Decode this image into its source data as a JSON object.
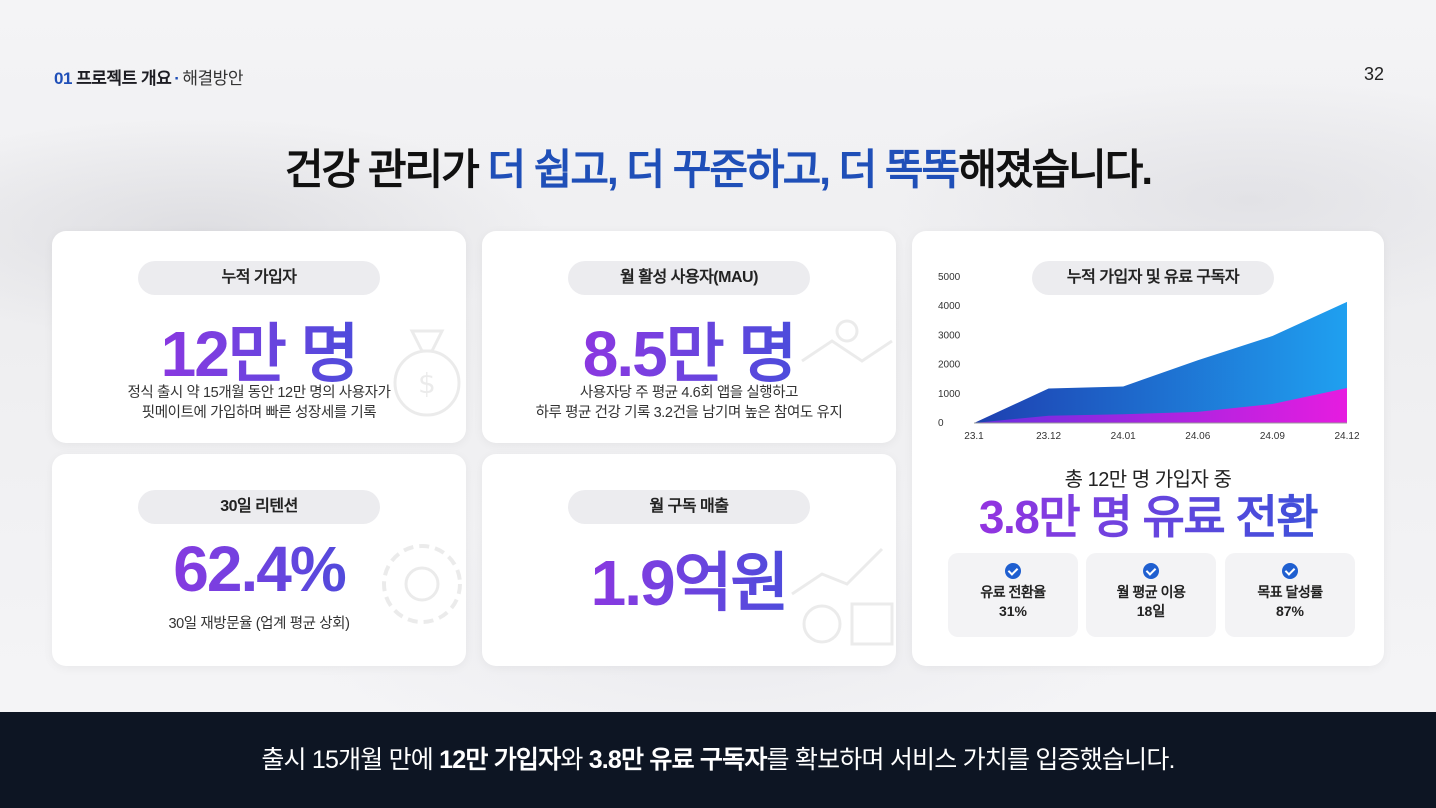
{
  "header": {
    "section_num": "01",
    "section_title": "프로젝트 개요",
    "separator": "·",
    "subsection": "해결방안",
    "page_number": "32"
  },
  "title": {
    "part1": "건강 관리가 ",
    "highlight1": "더 쉽고, 더 꾸준하고, 더 똑똑",
    "part2": "해졌습니다."
  },
  "cards": {
    "cumulative": {
      "label": "누적 가입자",
      "value": "12만 명",
      "desc_line1": "정식 출시 약 15개월 동안 12만 명의 사용자가",
      "desc_line2": "핏메이트에 가입하며 빠른 성장세를 기록"
    },
    "mau": {
      "label": "월 활성 사용자(MAU)",
      "value": "8.5만 명",
      "desc_line1": "사용자당 주 평균 4.6회 앱을 실행하고",
      "desc_line2": "하루 평균 건강 기록 3.2건을 남기며 높은 참여도 유지"
    },
    "retention": {
      "label": "30일 리텐션",
      "value": "62.4%",
      "desc_line1": "30일 재방문율 (업계 평균 상회)"
    },
    "revenue": {
      "label": "월 구독 매출",
      "value": "1.9억원"
    }
  },
  "chart_panel": {
    "label": "누적 가입자 및 유료 구독자",
    "total_line": "총 12만 명 가입자 중",
    "conversion": "3.8만 명 유료 전환",
    "stats": [
      {
        "label": "유료 전환율",
        "value": "31%"
      },
      {
        "label": "월 평균 이용",
        "value": "18일"
      },
      {
        "label": "목표 달성률",
        "value": "87%"
      }
    ]
  },
  "chart_data": {
    "type": "area",
    "x": [
      "23.1",
      "23.12",
      "24.01",
      "24.06",
      "24.09",
      "24.12"
    ],
    "yticks": [
      "0",
      "1000",
      "2000",
      "3000",
      "4000",
      "5000"
    ],
    "ylim": [
      0,
      5000
    ],
    "series": [
      {
        "values": [
          0,
          1180,
          1250,
          2150,
          2980,
          4150
        ],
        "color": "#1fa0f0"
      },
      {
        "values": [
          0,
          250,
          300,
          380,
          650,
          1200
        ],
        "color": "#e61ce0"
      }
    ]
  },
  "footer": {
    "t1": "출시 15개월 만에 ",
    "b1": "12만 가입자",
    "t2": "와 ",
    "b2": "3.8만 유료 구독자",
    "t3": "를 확보하며 서비스 가치를 입증했습니다."
  },
  "colors": {
    "accent_blue": "#1f4fb8",
    "gradient_purple": "#a52be0",
    "footer_bg": "#0d1523"
  }
}
